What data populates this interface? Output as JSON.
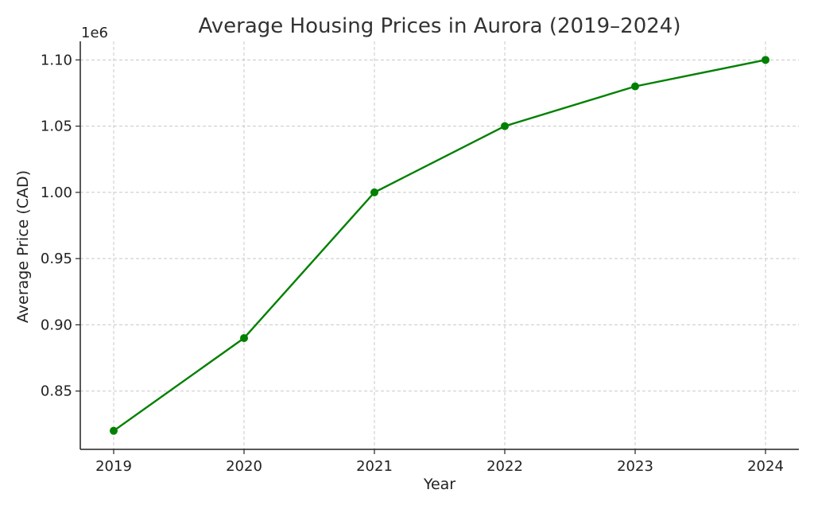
{
  "chart_data": {
    "type": "line",
    "title": "Average Housing Prices in Aurora (2019–2024)",
    "xlabel": "Year",
    "ylabel": "Average Price (CAD)",
    "y_offset_label": "1e6",
    "categories": [
      "2019",
      "2020",
      "2021",
      "2022",
      "2023",
      "2024"
    ],
    "series": [
      {
        "color": "#008000",
        "marker": "circle",
        "values": [
          820000,
          890000,
          1000000,
          1050000,
          1080000,
          1100000
        ]
      }
    ],
    "yticks": [
      850000,
      900000,
      950000,
      1000000,
      1050000,
      1100000
    ],
    "ytick_labels": [
      "0.85",
      "0.90",
      "0.95",
      "1.00",
      "1.05",
      "1.10"
    ],
    "ylim": [
      806000,
      1114000
    ],
    "grid": true,
    "legend": "none"
  }
}
